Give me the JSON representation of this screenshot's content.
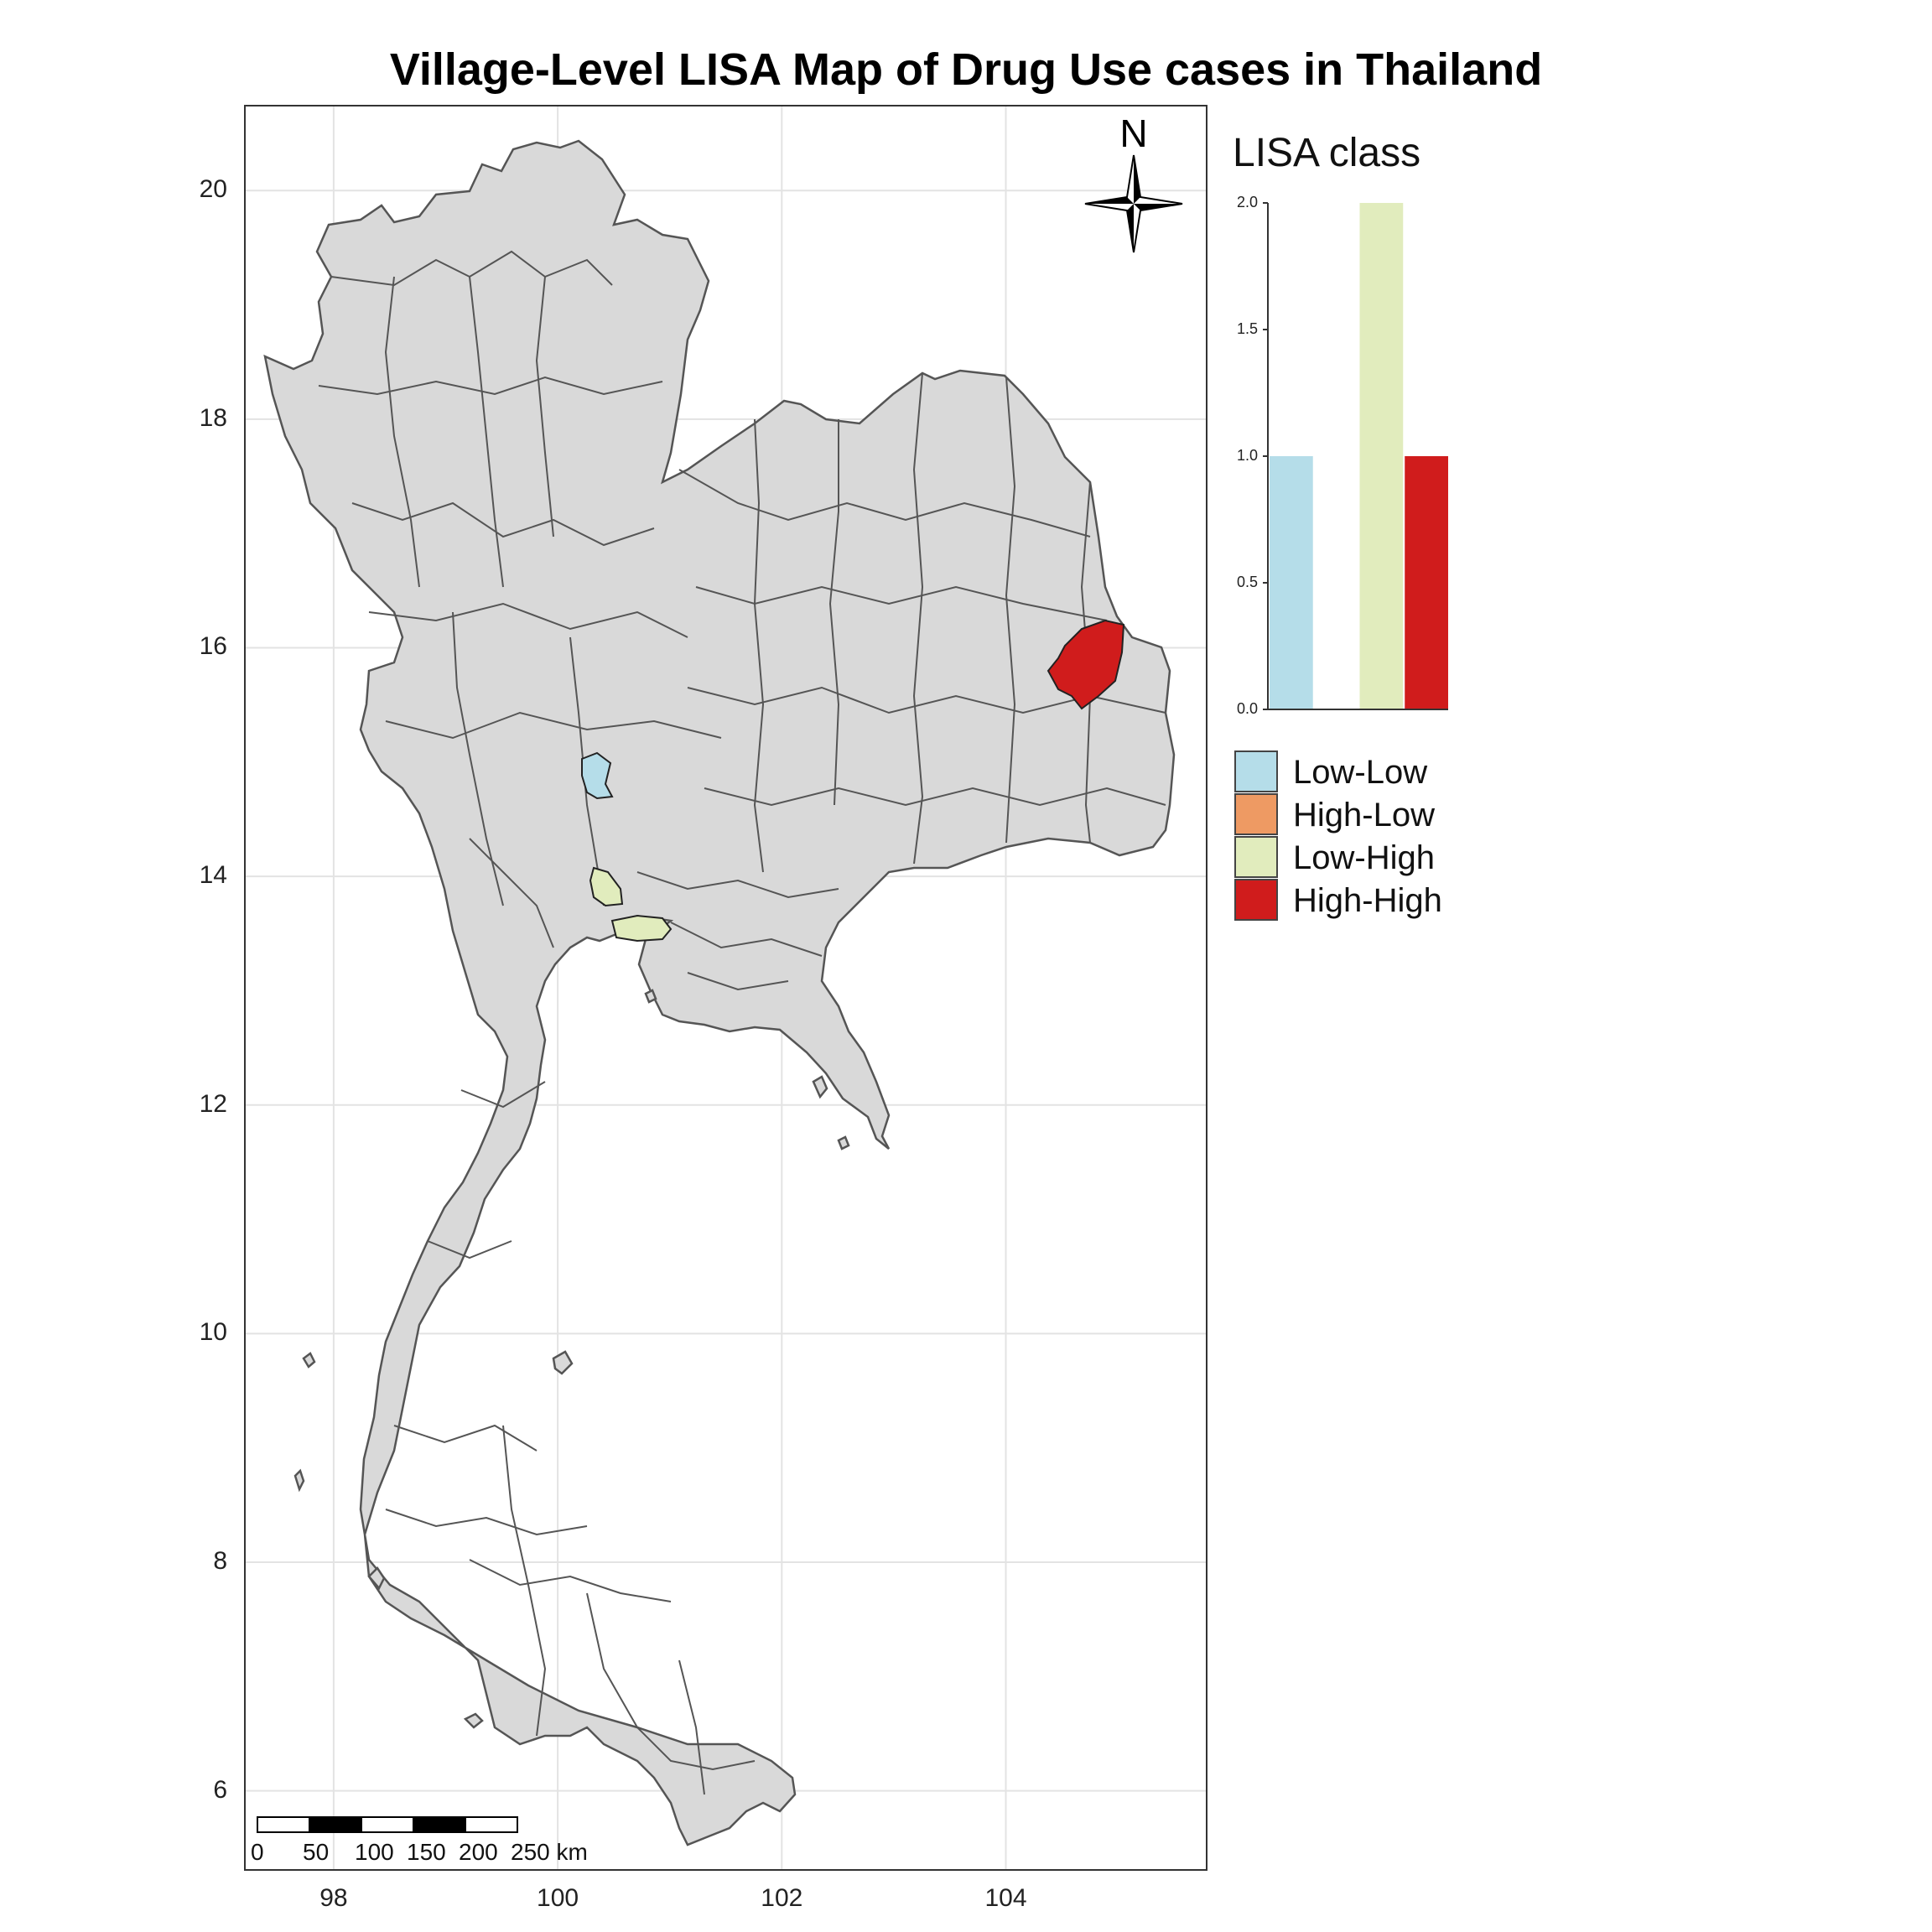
{
  "title": "Village-Level LISA Map of Drug Use cases in Thailand",
  "map": {
    "x_ticks": [
      "98",
      "100",
      "102",
      "104"
    ],
    "y_ticks": [
      "6",
      "8",
      "10",
      "12",
      "14",
      "16",
      "18",
      "20"
    ],
    "land_color": "#d9d9d9",
    "boundary_color": "#555555",
    "north_label": "N",
    "scale_bar": {
      "labels": [
        "0",
        "50",
        "100",
        "150",
        "200",
        "250 km"
      ]
    },
    "highlighted_regions": [
      {
        "name": "Low-Low",
        "color": "#b5dde9"
      },
      {
        "name": "Low-High",
        "color": "#e1ecbd"
      },
      {
        "name": "Low-High",
        "color": "#e1ecbd"
      },
      {
        "name": "High-High",
        "color": "#d01c1c"
      }
    ]
  },
  "legend": {
    "title": "LISA class",
    "items": [
      {
        "label": "Low-Low",
        "color": "#b5dde9"
      },
      {
        "label": "High-Low",
        "color": "#ee9a63"
      },
      {
        "label": "Low-High",
        "color": "#e1ecbd"
      },
      {
        "label": "High-High",
        "color": "#d01c1c"
      }
    ]
  },
  "chart_data": {
    "type": "bar",
    "categories": [
      "Low-Low",
      "High-Low",
      "Low-High",
      "High-High"
    ],
    "values": [
      1,
      0,
      2,
      1
    ],
    "colors": [
      "#b5dde9",
      "#ee9a63",
      "#e1ecbd",
      "#d01c1c"
    ],
    "y_ticks": [
      "0.0",
      "0.5",
      "1.0",
      "1.5",
      "2.0"
    ],
    "ylim": [
      0,
      2
    ],
    "title": "",
    "xlabel": "",
    "ylabel": ""
  }
}
